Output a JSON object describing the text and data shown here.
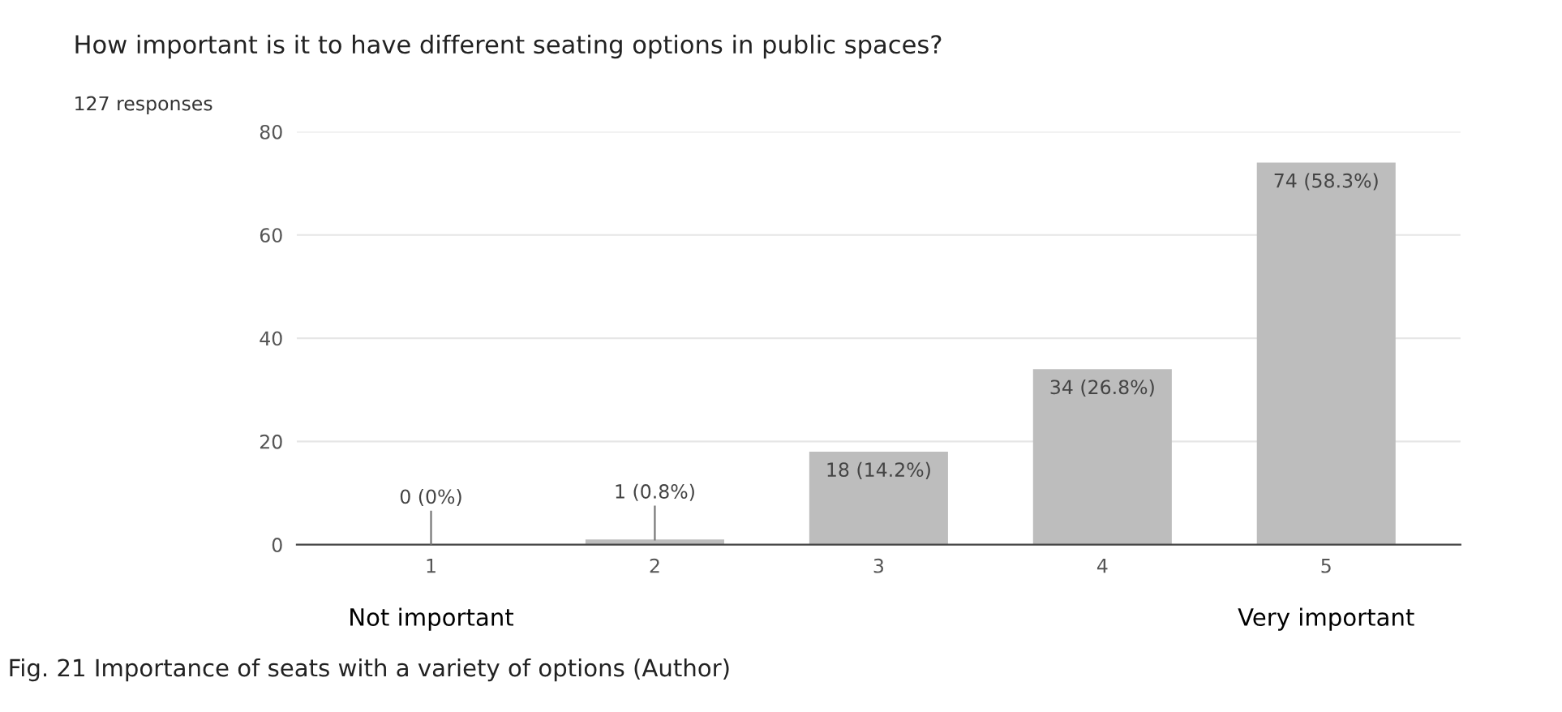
{
  "chart_data": {
    "type": "bar",
    "title": "How important is it to have different seating options in public spaces?",
    "subtitle": "127 responses",
    "categories": [
      "1",
      "2",
      "3",
      "4",
      "5"
    ],
    "values": [
      0,
      1,
      18,
      34,
      74
    ],
    "color": "#bdbdbd",
    "value_labels": [
      "0 (0%)",
      "1 (0.8%)",
      "18 (14.2%)",
      "34 (26.8%)",
      "74 (58.3%)"
    ],
    "ylim": [
      0,
      80
    ],
    "yticks": [
      0,
      20,
      40,
      60,
      80
    ],
    "grid": "y",
    "annotations": [
      "Not important",
      "Very important",
      "Fig. 21 Importance of seats with a variety of options (Author)"
    ]
  }
}
